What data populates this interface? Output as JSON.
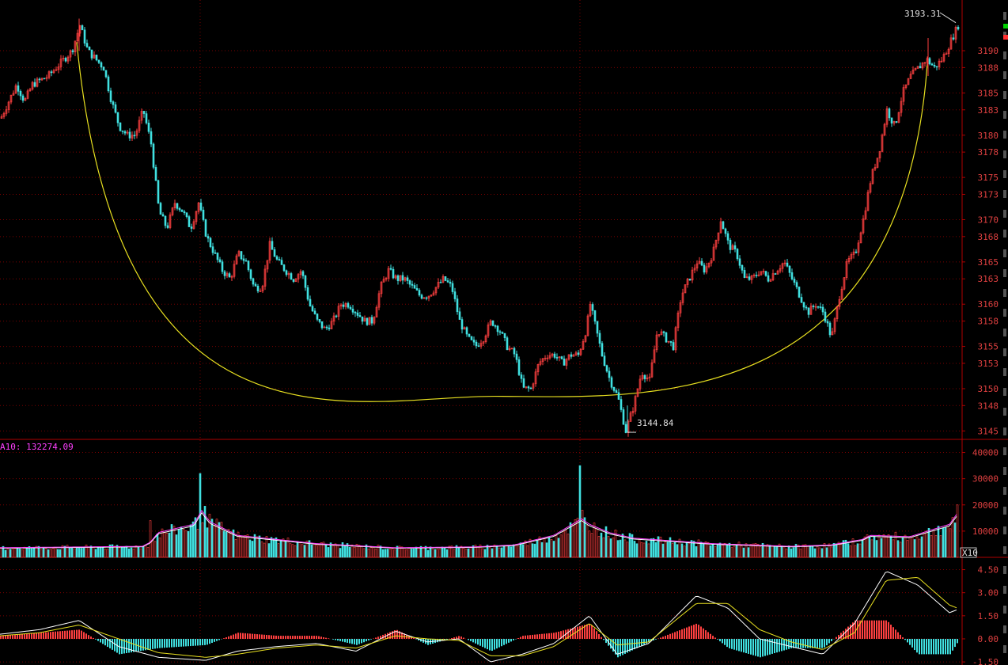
{
  "chart_data": [
    {
      "type": "line",
      "panel": "price",
      "ylim": [
        3144,
        3196
      ],
      "yticks": [
        "3190",
        "3188",
        "3185",
        "3183",
        "3180",
        "3178",
        "3175",
        "3173",
        "3170",
        "3168",
        "3165",
        "3163",
        "3160",
        "3158",
        "3155",
        "3153",
        "3150",
        "3148",
        "3145"
      ],
      "ytick_values": [
        3190,
        3188,
        3185,
        3183,
        3180,
        3178,
        3175,
        3173,
        3170,
        3168,
        3165,
        3163,
        3160,
        3158,
        3155,
        3153,
        3150,
        3148,
        3145
      ],
      "price_anchors": [
        [
          0,
          3182
        ],
        [
          10,
          3184
        ],
        [
          20,
          3186
        ],
        [
          30,
          3184
        ],
        [
          40,
          3186
        ],
        [
          50,
          3186.5
        ],
        [
          60,
          3187
        ],
        [
          70,
          3188
        ],
        [
          80,
          3189
        ],
        [
          90,
          3190
        ],
        [
          100,
          3193
        ],
        [
          110,
          3190
        ],
        [
          120,
          3189
        ],
        [
          130,
          3188
        ],
        [
          140,
          3184
        ],
        [
          150,
          3181
        ],
        [
          160,
          3180
        ],
        [
          170,
          3180
        ],
        [
          180,
          3183
        ],
        [
          190,
          3179
        ],
        [
          200,
          3171
        ],
        [
          210,
          3169
        ],
        [
          220,
          3172
        ],
        [
          230,
          3171
        ],
        [
          240,
          3169
        ],
        [
          250,
          3172
        ],
        [
          260,
          3168
        ],
        [
          270,
          3166
        ],
        [
          280,
          3164
        ],
        [
          290,
          3163
        ],
        [
          300,
          3166
        ],
        [
          310,
          3165
        ],
        [
          320,
          3162
        ],
        [
          330,
          3162
        ],
        [
          340,
          3167
        ],
        [
          350,
          3165
        ],
        [
          360,
          3164
        ],
        [
          370,
          3163
        ],
        [
          380,
          3164
        ],
        [
          390,
          3160
        ],
        [
          400,
          3158
        ],
        [
          410,
          3157
        ],
        [
          420,
          3158
        ],
        [
          430,
          3160
        ],
        [
          440,
          3160
        ],
        [
          450,
          3159
        ],
        [
          460,
          3158
        ],
        [
          470,
          3158
        ],
        [
          480,
          3162
        ],
        [
          490,
          3164
        ],
        [
          500,
          3163
        ],
        [
          510,
          3163
        ],
        [
          520,
          3162
        ],
        [
          530,
          3161
        ],
        [
          540,
          3161
        ],
        [
          550,
          3162
        ],
        [
          560,
          3163
        ],
        [
          570,
          3162
        ],
        [
          580,
          3158
        ],
        [
          590,
          3156
        ],
        [
          600,
          3155
        ],
        [
          610,
          3156
        ],
        [
          620,
          3158
        ],
        [
          630,
          3157
        ],
        [
          640,
          3155
        ],
        [
          650,
          3154
        ],
        [
          660,
          3150
        ],
        [
          670,
          3150
        ],
        [
          680,
          3153
        ],
        [
          690,
          3154
        ],
        [
          700,
          3154
        ],
        [
          710,
          3153
        ],
        [
          720,
          3154
        ],
        [
          730,
          3154
        ],
        [
          740,
          3157
        ],
        [
          745,
          3160
        ],
        [
          750,
          3158
        ],
        [
          760,
          3154
        ],
        [
          770,
          3151
        ],
        [
          780,
          3149
        ],
        [
          790,
          3145
        ],
        [
          800,
          3148
        ],
        [
          810,
          3152
        ],
        [
          820,
          3151
        ],
        [
          830,
          3157
        ],
        [
          840,
          3156
        ],
        [
          850,
          3155
        ],
        [
          860,
          3161
        ],
        [
          870,
          3163
        ],
        [
          880,
          3165
        ],
        [
          890,
          3164
        ],
        [
          900,
          3166
        ],
        [
          910,
          3170
        ],
        [
          920,
          3167
        ],
        [
          930,
          3166
        ],
        [
          940,
          3163
        ],
        [
          950,
          3163
        ],
        [
          960,
          3164
        ],
        [
          970,
          3163
        ],
        [
          980,
          3164
        ],
        [
          990,
          3165
        ],
        [
          1000,
          3163
        ],
        [
          1010,
          3161
        ],
        [
          1020,
          3159
        ],
        [
          1030,
          3160
        ],
        [
          1040,
          3159
        ],
        [
          1050,
          3156
        ],
        [
          1060,
          3161
        ],
        [
          1070,
          3165
        ],
        [
          1080,
          3166
        ],
        [
          1090,
          3170
        ],
        [
          1100,
          3175
        ],
        [
          1110,
          3178
        ],
        [
          1120,
          3183
        ],
        [
          1130,
          3181
        ],
        [
          1140,
          3185
        ],
        [
          1150,
          3187
        ],
        [
          1160,
          3188
        ],
        [
          1170,
          3189
        ],
        [
          1180,
          3188
        ],
        [
          1190,
          3189
        ],
        [
          1200,
          3191
        ],
        [
          1210,
          3193
        ]
      ],
      "annotations": [
        {
          "text": "3193.31",
          "value": 3193.31
        },
        {
          "text": "3144.84",
          "value": 3144.84
        }
      ]
    },
    {
      "type": "bar",
      "panel": "volume",
      "label": "A10: 132274.09",
      "ylim": [
        0,
        45000
      ],
      "yticks": [
        "40000",
        "30000",
        "20000",
        "10000"
      ],
      "ytick_values": [
        40000,
        30000,
        20000,
        10000
      ],
      "unit_label": "X10",
      "volume_anchors": [
        [
          0,
          3500
        ],
        [
          180,
          4000
        ],
        [
          190,
          5500
        ],
        [
          200,
          9000
        ],
        [
          245,
          12000
        ],
        [
          255,
          17000
        ],
        [
          265,
          13000
        ],
        [
          300,
          8000
        ],
        [
          350,
          6500
        ],
        [
          400,
          5000
        ],
        [
          500,
          3500
        ],
        [
          600,
          3800
        ],
        [
          650,
          4500
        ],
        [
          700,
          8000
        ],
        [
          735,
          14000
        ],
        [
          745,
          12000
        ],
        [
          770,
          9000
        ],
        [
          800,
          7000
        ],
        [
          900,
          5000
        ],
        [
          1000,
          4000
        ],
        [
          1050,
          4500
        ],
        [
          1090,
          6500
        ],
        [
          1100,
          8000
        ],
        [
          1150,
          7500
        ],
        [
          1200,
          12000
        ],
        [
          1210,
          16000
        ]
      ],
      "spikes": [
        [
          253,
          32000
        ],
        [
          733,
          35000
        ],
        [
          1210,
          20000
        ],
        [
          190,
          14000
        ],
        [
          735,
          18000
        ]
      ]
    },
    {
      "type": "bar",
      "panel": "macd",
      "ylim": [
        -1.7,
        5.3
      ],
      "yticks": [
        "4.50",
        "3.00",
        "1.50",
        "0.00",
        "-1.50"
      ],
      "ytick_values": [
        4.5,
        3.0,
        1.5,
        0.0,
        -1.5
      ],
      "dif_anchors": [
        [
          0,
          0.3
        ],
        [
          50,
          0.6
        ],
        [
          100,
          1.2
        ],
        [
          150,
          -0.5
        ],
        [
          200,
          -1.2
        ],
        [
          260,
          -1.4
        ],
        [
          300,
          -0.8
        ],
        [
          350,
          -0.5
        ],
        [
          400,
          -0.3
        ],
        [
          450,
          -0.8
        ],
        [
          500,
          0.5
        ],
        [
          540,
          -0.2
        ],
        [
          580,
          0.0
        ],
        [
          620,
          -1.5
        ],
        [
          660,
          -1.0
        ],
        [
          700,
          -0.3
        ],
        [
          745,
          1.5
        ],
        [
          780,
          -1.0
        ],
        [
          820,
          -0.3
        ],
        [
          880,
          2.8
        ],
        [
          920,
          2.0
        ],
        [
          960,
          0.0
        ],
        [
          1000,
          -0.5
        ],
        [
          1040,
          -1.0
        ],
        [
          1080,
          1.0
        ],
        [
          1120,
          4.4
        ],
        [
          1160,
          3.5
        ],
        [
          1200,
          1.7
        ],
        [
          1210,
          1.9
        ]
      ],
      "dea_anchors": [
        [
          0,
          0.2
        ],
        [
          50,
          0.4
        ],
        [
          100,
          0.9
        ],
        [
          150,
          0.0
        ],
        [
          200,
          -0.9
        ],
        [
          260,
          -1.2
        ],
        [
          300,
          -1.0
        ],
        [
          350,
          -0.6
        ],
        [
          400,
          -0.4
        ],
        [
          450,
          -0.6
        ],
        [
          500,
          0.2
        ],
        [
          540,
          0.0
        ],
        [
          580,
          -0.1
        ],
        [
          620,
          -1.1
        ],
        [
          660,
          -1.1
        ],
        [
          700,
          -0.5
        ],
        [
          745,
          1.0
        ],
        [
          780,
          -0.4
        ],
        [
          820,
          -0.2
        ],
        [
          880,
          2.3
        ],
        [
          920,
          2.3
        ],
        [
          960,
          0.6
        ],
        [
          1000,
          -0.2
        ],
        [
          1040,
          -0.7
        ],
        [
          1080,
          0.4
        ],
        [
          1120,
          3.8
        ],
        [
          1160,
          4.0
        ],
        [
          1200,
          2.2
        ],
        [
          1210,
          2.0
        ]
      ]
    }
  ]
}
